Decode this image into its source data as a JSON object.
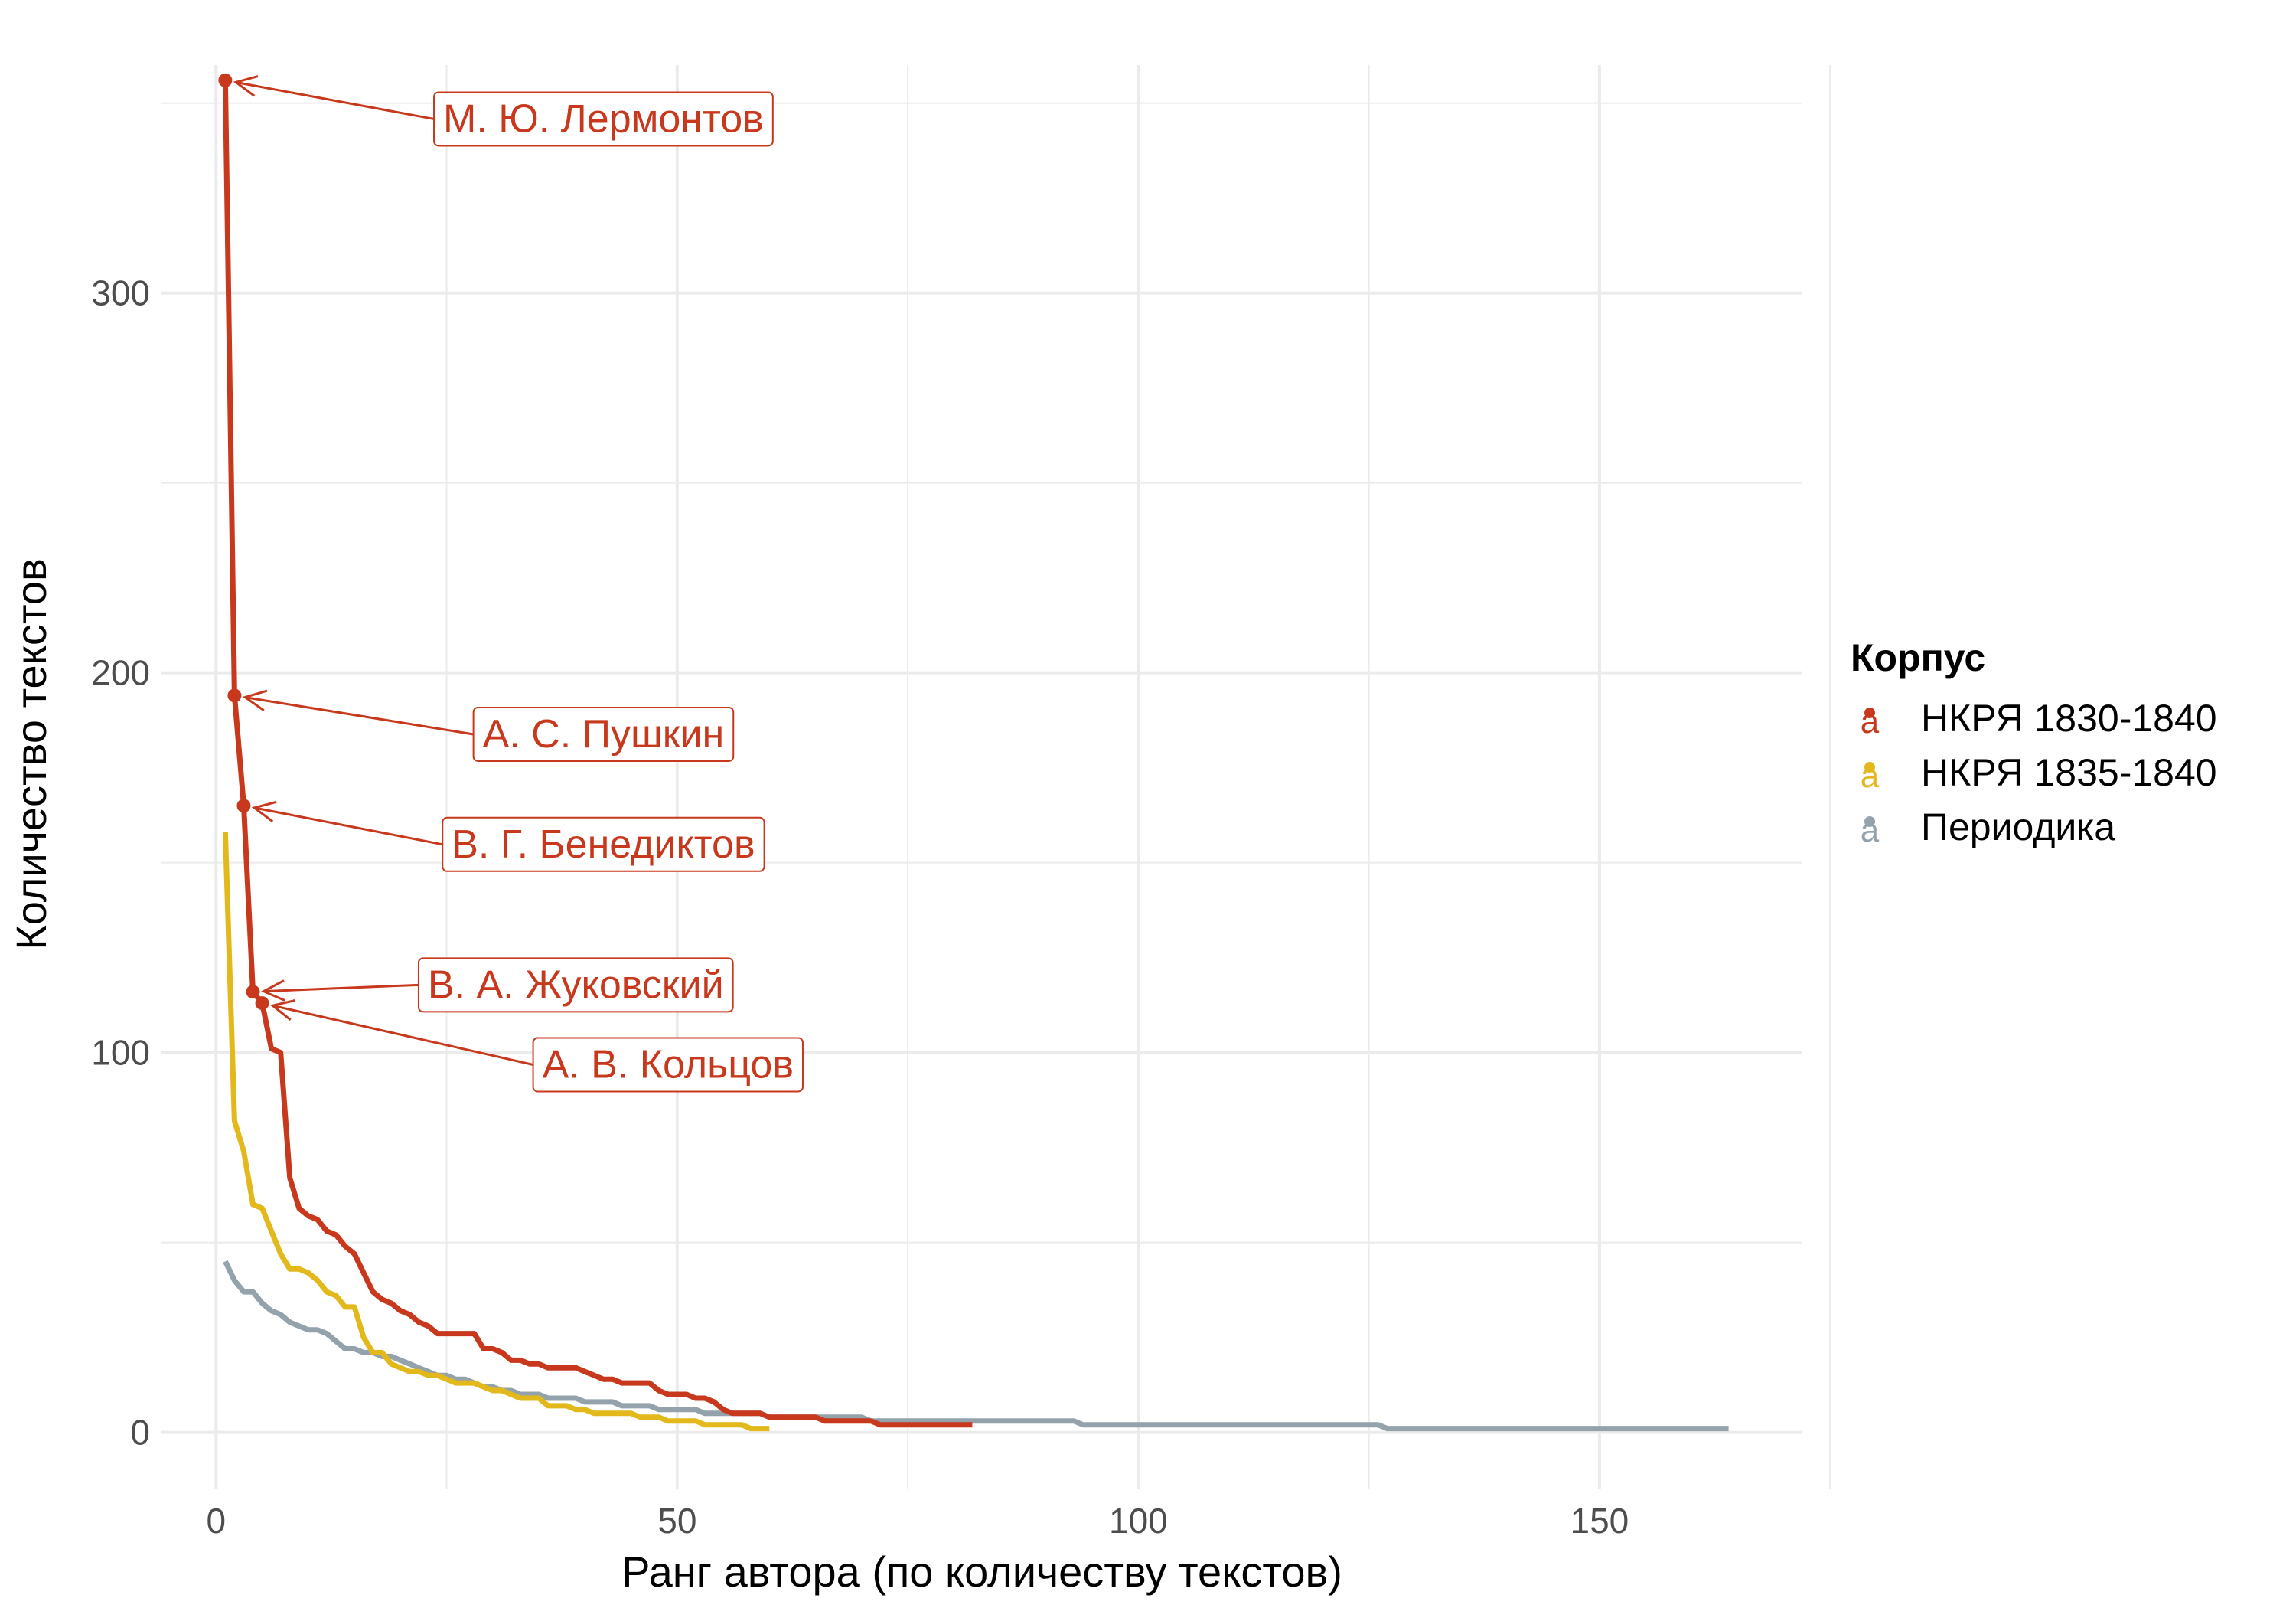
{
  "chart_data": {
    "type": "line",
    "xlabel": "Ранг автора (по количеству текстов)",
    "ylabel": "Количество текстов",
    "xlim": [
      -6,
      172
    ],
    "ylim": [
      -15,
      360
    ],
    "x_ticks": [
      0,
      50,
      100,
      150
    ],
    "x_tick_labels": [
      "0",
      "50",
      "100",
      "150"
    ],
    "y_ticks": [
      0,
      100,
      200,
      300
    ],
    "y_tick_labels": [
      "0",
      "100",
      "200",
      "300"
    ],
    "grid": true,
    "legend": {
      "title": "Корпус",
      "position": "right",
      "key_glyph": "a"
    },
    "series": [
      {
        "name": "НКРЯ 1830-1840",
        "color": "#C8381C",
        "x": [
          1,
          2,
          3,
          4,
          5,
          6,
          7,
          8,
          9,
          10,
          11,
          12,
          13,
          14,
          15,
          16,
          17,
          18,
          19,
          20,
          21,
          22,
          23,
          24,
          25,
          26,
          27,
          28,
          29,
          30,
          31,
          32,
          33,
          34,
          35,
          36,
          37,
          38,
          39,
          40,
          41,
          42,
          43,
          44,
          45,
          46,
          47,
          48,
          49,
          50,
          51,
          52,
          53,
          54,
          55,
          56,
          57,
          58,
          59,
          60,
          61,
          62,
          63,
          64,
          65,
          66,
          67,
          68,
          69,
          70,
          71,
          72,
          73,
          74,
          75,
          76,
          77,
          78,
          79,
          80,
          81,
          82
        ],
        "values": [
          356,
          194,
          165,
          116,
          113,
          101,
          100,
          67,
          59,
          57,
          56,
          53,
          52,
          49,
          47,
          42,
          37,
          35,
          34,
          32,
          31,
          29,
          28,
          26,
          26,
          26,
          26,
          26,
          22,
          22,
          21,
          19,
          19,
          18,
          18,
          17,
          17,
          17,
          17,
          16,
          15,
          14,
          14,
          13,
          13,
          13,
          13,
          11,
          10,
          10,
          10,
          9,
          9,
          8,
          6,
          5,
          5,
          5,
          5,
          4,
          4,
          4,
          4,
          4,
          4,
          3,
          3,
          3,
          3,
          3,
          3,
          2,
          2,
          2,
          2,
          2,
          2,
          2,
          2,
          2,
          2,
          2
        ]
      },
      {
        "name": "НКРЯ 1835-1840",
        "color": "#E3B81B",
        "x": [
          1,
          2,
          3,
          4,
          5,
          6,
          7,
          8,
          9,
          10,
          11,
          12,
          13,
          14,
          15,
          16,
          17,
          18,
          19,
          20,
          21,
          22,
          23,
          24,
          25,
          26,
          27,
          28,
          29,
          30,
          31,
          32,
          33,
          34,
          35,
          36,
          37,
          38,
          39,
          40,
          41,
          42,
          43,
          44,
          45,
          46,
          47,
          48,
          49,
          50,
          51,
          52,
          53,
          54,
          55,
          56,
          57,
          58,
          59,
          60
        ],
        "values": [
          158,
          82,
          74,
          60,
          59,
          53,
          47,
          43,
          43,
          42,
          40,
          37,
          36,
          33,
          33,
          25,
          21,
          21,
          18,
          17,
          16,
          16,
          15,
          15,
          14,
          13,
          13,
          13,
          12,
          11,
          11,
          10,
          9,
          9,
          9,
          7,
          7,
          7,
          6,
          6,
          5,
          5,
          5,
          5,
          5,
          4,
          4,
          4,
          3,
          3,
          3,
          3,
          2,
          2,
          2,
          2,
          2,
          1,
          1,
          1
        ]
      },
      {
        "name": "Периодика",
        "color": "#94A3AB",
        "x": [
          1,
          2,
          3,
          4,
          5,
          6,
          7,
          8,
          9,
          10,
          11,
          12,
          13,
          14,
          15,
          16,
          17,
          18,
          19,
          20,
          21,
          22,
          23,
          24,
          25,
          26,
          27,
          28,
          29,
          30,
          31,
          32,
          33,
          34,
          35,
          36,
          37,
          38,
          39,
          40,
          41,
          42,
          43,
          44,
          45,
          46,
          47,
          48,
          49,
          50,
          51,
          52,
          53,
          54,
          55,
          56,
          57,
          58,
          59,
          60,
          61,
          62,
          63,
          64,
          65,
          66,
          67,
          68,
          69,
          70,
          71,
          72,
          73,
          74,
          75,
          76,
          77,
          78,
          79,
          80,
          81,
          82,
          83,
          84,
          85,
          86,
          87,
          88,
          89,
          90,
          91,
          92,
          93,
          94,
          95,
          96,
          97,
          98,
          99,
          100,
          101,
          102,
          103,
          104,
          105,
          106,
          107,
          108,
          109,
          110,
          111,
          112,
          113,
          114,
          115,
          116,
          117,
          118,
          119,
          120,
          121,
          122,
          123,
          124,
          125,
          126,
          127,
          128,
          129,
          130,
          131,
          132,
          133,
          134,
          135,
          136,
          137,
          138,
          139,
          140,
          141,
          142,
          143,
          144,
          145,
          146,
          147,
          148,
          149,
          150,
          151,
          152,
          153,
          154,
          155,
          156,
          157,
          158,
          159,
          160,
          161,
          162,
          163,
          164
        ],
        "values": [
          45,
          40,
          37,
          37,
          34,
          32,
          31,
          29,
          28,
          27,
          27,
          26,
          24,
          22,
          22,
          21,
          21,
          20,
          20,
          19,
          18,
          17,
          16,
          15,
          15,
          14,
          14,
          13,
          12,
          12,
          11,
          11,
          10,
          10,
          10,
          9,
          9,
          9,
          9,
          8,
          8,
          8,
          8,
          7,
          7,
          7,
          7,
          6,
          6,
          6,
          6,
          6,
          5,
          5,
          5,
          5,
          5,
          5,
          5,
          4,
          4,
          4,
          4,
          4,
          4,
          4,
          4,
          4,
          4,
          4,
          3,
          3,
          3,
          3,
          3,
          3,
          3,
          3,
          3,
          3,
          3,
          3,
          3,
          3,
          3,
          3,
          3,
          3,
          3,
          3,
          3,
          3,
          3,
          2,
          2,
          2,
          2,
          2,
          2,
          2,
          2,
          2,
          2,
          2,
          2,
          2,
          2,
          2,
          2,
          2,
          2,
          2,
          2,
          2,
          2,
          2,
          2,
          2,
          2,
          2,
          2,
          2,
          2,
          2,
          2,
          2,
          1,
          1,
          1,
          1,
          1,
          1,
          1,
          1,
          1,
          1,
          1,
          1,
          1,
          1,
          1,
          1,
          1,
          1,
          1,
          1,
          1,
          1,
          1,
          1,
          1,
          1,
          1,
          1,
          1,
          1,
          1,
          1,
          1,
          1,
          1,
          1,
          1,
          1
        ]
      }
    ],
    "annotations": [
      {
        "text": "М. Ю. Лермонтов",
        "x": 1,
        "y": 356,
        "label_x": 42,
        "label_y": 346,
        "color": "#C8381C"
      },
      {
        "text": "А. С. Пушкин",
        "x": 2,
        "y": 194,
        "label_x": 42,
        "label_y": 184,
        "color": "#C8381C"
      },
      {
        "text": "В. Г. Бенедиктов",
        "x": 3,
        "y": 165,
        "label_x": 42,
        "label_y": 155,
        "color": "#C8381C"
      },
      {
        "text": "В. А. Жуковский",
        "x": 4,
        "y": 116,
        "label_x": 39,
        "label_y": 118,
        "color": "#C8381C"
      },
      {
        "text": "А. В. Кольцов",
        "x": 5,
        "y": 113,
        "label_x": 49,
        "label_y": 97,
        "color": "#C8381C"
      }
    ]
  }
}
